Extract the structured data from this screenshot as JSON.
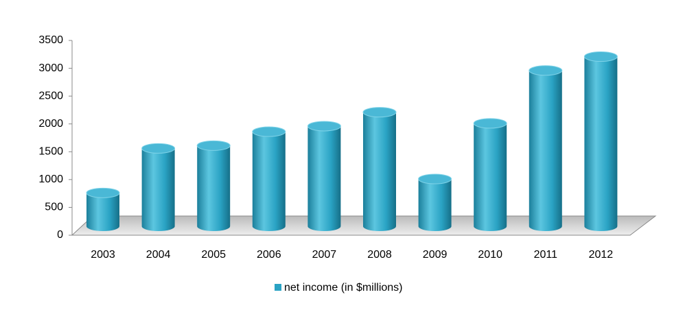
{
  "chart_data": {
    "type": "bar",
    "categories": [
      "2003",
      "2004",
      "2005",
      "2006",
      "2007",
      "2008",
      "2009",
      "2010",
      "2011",
      "2012"
    ],
    "series": [
      {
        "name": "net income (in $millions)",
        "color": "#2aa3c4",
        "values": [
          600,
          1400,
          1450,
          1700,
          1800,
          2050,
          850,
          1850,
          2800,
          3050
        ]
      }
    ],
    "ylim": [
      0,
      3500
    ],
    "yticks": [
      0,
      500,
      1000,
      1500,
      2000,
      2500,
      3000,
      3500
    ],
    "legend": "bottom"
  }
}
